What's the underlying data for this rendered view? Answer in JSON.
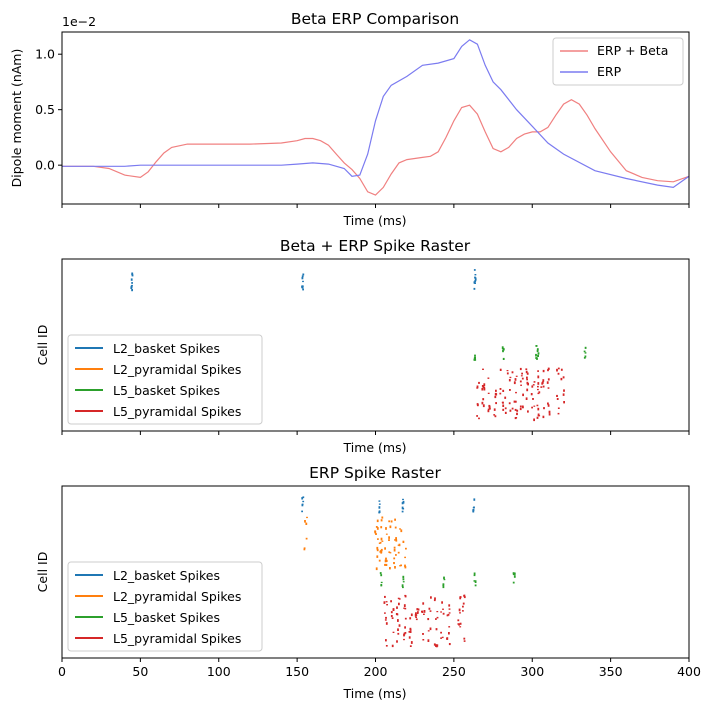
{
  "chart_data": [
    {
      "type": "line",
      "title": "Beta ERP Comparison",
      "xlabel": "Time (ms)",
      "ylabel": "Dipole moment (nAm)",
      "offset_text": "1e−2",
      "xlim": [
        0,
        400
      ],
      "ylim": [
        -0.0035,
        0.012
      ],
      "yticks": [
        0.0,
        0.005,
        0.01
      ],
      "ytick_labels": [
        "0.0",
        "0.5",
        "1.0"
      ],
      "legend_position": "upper right",
      "series": [
        {
          "name": "ERP + Beta",
          "color": "#f08080",
          "x": [
            0,
            10,
            20,
            30,
            40,
            50,
            55,
            60,
            65,
            70,
            80,
            90,
            100,
            120,
            140,
            150,
            155,
            160,
            165,
            170,
            175,
            180,
            185,
            190,
            195,
            200,
            205,
            210,
            215,
            220,
            225,
            230,
            235,
            240,
            245,
            250,
            255,
            260,
            265,
            270,
            275,
            280,
            285,
            290,
            295,
            300,
            305,
            310,
            315,
            320,
            325,
            330,
            335,
            340,
            350,
            360,
            370,
            380,
            390,
            400
          ],
          "y": [
            -0.0001,
            -0.0001,
            -0.0001,
            -0.0003,
            -0.0009,
            -0.0011,
            -0.0006,
            0.0003,
            0.0011,
            0.0016,
            0.0019,
            0.0019,
            0.0019,
            0.0019,
            0.002,
            0.0022,
            0.0024,
            0.0024,
            0.0022,
            0.0018,
            0.001,
            0.0002,
            -0.0004,
            -0.0012,
            -0.0024,
            -0.0027,
            -0.002,
            -0.0008,
            0.0002,
            0.0005,
            0.0006,
            0.0007,
            0.0008,
            0.0012,
            0.0025,
            0.004,
            0.0052,
            0.0054,
            0.0046,
            0.003,
            0.0015,
            0.0012,
            0.0016,
            0.0024,
            0.0028,
            0.003,
            0.003,
            0.0034,
            0.0045,
            0.0055,
            0.0059,
            0.0055,
            0.0045,
            0.0033,
            0.0012,
            -0.0005,
            -0.0011,
            -0.0014,
            -0.0015,
            -0.001
          ]
        },
        {
          "name": "ERP",
          "color": "#7b7bf0",
          "x": [
            0,
            20,
            40,
            50,
            60,
            80,
            100,
            120,
            140,
            150,
            160,
            170,
            180,
            185,
            190,
            195,
            200,
            205,
            210,
            220,
            230,
            240,
            250,
            255,
            260,
            265,
            270,
            275,
            280,
            290,
            300,
            310,
            320,
            340,
            360,
            380,
            390,
            400
          ],
          "y": [
            -0.0001,
            -0.0001,
            -0.0001,
            0.0,
            0.0,
            0.0,
            0.0,
            0.0,
            0.0,
            0.0001,
            0.0002,
            0.0001,
            -0.0003,
            -0.001,
            -0.0009,
            0.001,
            0.004,
            0.0062,
            0.0072,
            0.008,
            0.009,
            0.0092,
            0.0096,
            0.0107,
            0.0113,
            0.0109,
            0.009,
            0.0075,
            0.0068,
            0.005,
            0.0035,
            0.002,
            0.001,
            -0.0005,
            -0.0012,
            -0.0018,
            -0.002,
            -0.001
          ]
        }
      ]
    },
    {
      "type": "scatter",
      "title": "Beta + ERP Spike Raster",
      "xlabel": "Time (ms)",
      "ylabel": "Cell ID",
      "xlim": [
        0,
        400
      ],
      "legend_position": "lower left",
      "series": [
        {
          "name": "L2_basket Spikes",
          "color": "#1f77b4",
          "x": [
            44,
            153,
            263
          ]
        },
        {
          "name": "L2_pyramidal Spikes",
          "color": "#ff7f0e",
          "x": []
        },
        {
          "name": "L5_basket Spikes",
          "color": "#2ca02c",
          "x": [
            263,
            281,
            302,
            303,
            333
          ]
        },
        {
          "name": "L5_pyramidal Spikes",
          "color": "#d62728",
          "x": [
            265,
            268,
            272,
            276,
            280,
            283,
            286,
            289,
            293,
            296,
            300,
            303,
            306,
            310,
            316,
            319
          ]
        }
      ]
    },
    {
      "type": "scatter",
      "title": "ERP Spike Raster",
      "xlabel": "Time (ms)",
      "ylabel": "Cell ID",
      "xlim": [
        0,
        400
      ],
      "xticks": [
        0,
        50,
        100,
        150,
        200,
        250,
        300,
        350,
        400
      ],
      "xtick_labels": [
        "0",
        "50",
        "100",
        "150",
        "200",
        "250",
        "300",
        "350",
        "400"
      ],
      "legend_position": "lower left",
      "series": [
        {
          "name": "L2_basket Spikes",
          "color": "#1f77b4",
          "x": [
            153,
            202,
            217,
            262
          ]
        },
        {
          "name": "L2_pyramidal Spikes",
          "color": "#ff7f0e",
          "x": [
            155,
            200,
            203,
            206,
            209,
            212,
            215,
            218
          ]
        },
        {
          "name": "L5_basket Spikes",
          "color": "#2ca02c",
          "x": [
            203,
            217,
            243,
            263,
            288
          ]
        },
        {
          "name": "L5_pyramidal Spikes",
          "color": "#d62728",
          "x": [
            206,
            210,
            214,
            218,
            222,
            226,
            230,
            234,
            238,
            242,
            246,
            253,
            256
          ]
        }
      ]
    }
  ]
}
